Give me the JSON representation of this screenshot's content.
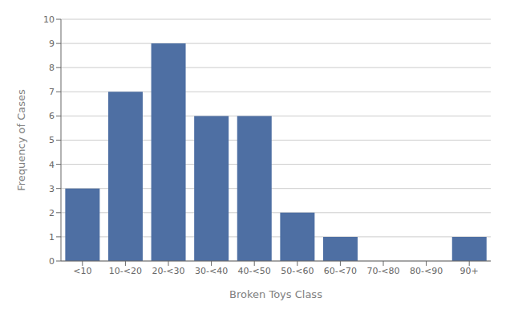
{
  "chart_data": {
    "type": "bar",
    "categories": [
      "<10",
      "10-<20",
      "20-<30",
      "30-<40",
      "40-<50",
      "50-<60",
      "60-<70",
      "70-<80",
      "80-<90",
      "90+"
    ],
    "values": [
      3,
      7,
      9,
      6,
      6,
      2,
      1,
      0,
      0,
      1
    ],
    "color": "#4e6fa3",
    "xlabel": "Broken Toys Class",
    "ylabel": "Frequency of Cases",
    "ylim": [
      0,
      10
    ],
    "yticks": [
      0,
      1,
      2,
      3,
      4,
      5,
      6,
      7,
      8,
      9,
      10
    ],
    "grid": true
  }
}
